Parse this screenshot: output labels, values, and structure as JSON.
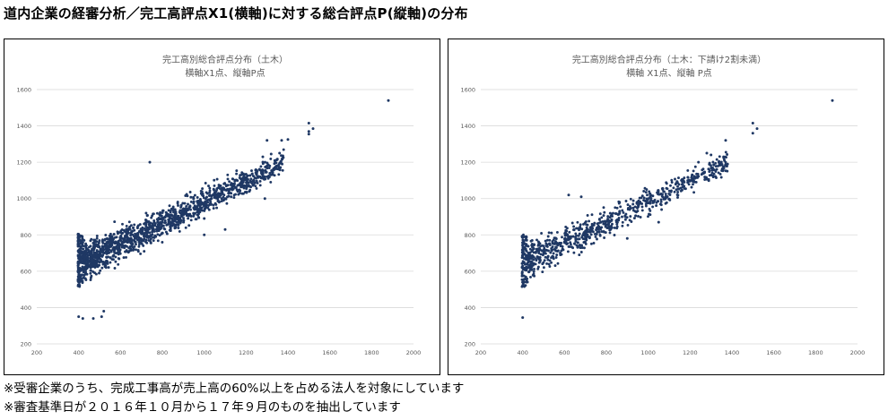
{
  "page": {
    "heading": "道内企業の経審分析／完工高評点X1(横軸)に対する総合評点P(縦軸)の分布",
    "footnotes": [
      "※受審企業のうち、完成工事高が売上高の60%以上を占める法人を対象にしています",
      "※審査基準日が２０１６年１０月から１７年９月のものを抽出しています"
    ]
  },
  "colors": {
    "marker": "#1f3864",
    "grid": "#d9d9d9",
    "axis_text": "#595959",
    "title_text": "#595959"
  },
  "chart_data": [
    {
      "type": "scatter",
      "title": "完工高別総合評点分布（土木）",
      "subtitle": "横軸X1点、縦軸P点",
      "xlabel": "",
      "ylabel": "",
      "xlim": [
        200,
        2000
      ],
      "ylim": [
        200,
        1600
      ],
      "xticks": [
        "200",
        "400",
        "600",
        "800",
        "1000",
        "1200",
        "1400",
        "1600",
        "1800",
        "2000"
      ],
      "yticks": [
        "200",
        "400",
        "600",
        "800",
        "1000",
        "1200",
        "1400",
        "1600"
      ],
      "grid": "horizontal",
      "legend": "none",
      "points_generated": {
        "count": 1500,
        "x_min": 397,
        "x_max": 1380,
        "slope": 0.57,
        "intercept": 410,
        "spread": 60,
        "density": "dense near low x"
      },
      "notable_points": [
        [
          1880,
          1540
        ],
        [
          1500,
          1415
        ],
        [
          1520,
          1385
        ],
        [
          1500,
          1370
        ],
        [
          1500,
          1355
        ],
        [
          1400,
          1325
        ],
        [
          1370,
          1320
        ],
        [
          1300,
          1320
        ],
        [
          1360,
          1250
        ],
        [
          1320,
          1245
        ],
        [
          1280,
          1230
        ],
        [
          1290,
          1000
        ],
        [
          1000,
          800
        ],
        [
          1100,
          830
        ],
        [
          420,
          340
        ],
        [
          400,
          350
        ],
        [
          470,
          340
        ],
        [
          520,
          380
        ],
        [
          510,
          350
        ],
        [
          740,
          1200
        ],
        [
          1000,
          890
        ]
      ]
    },
    {
      "type": "scatter",
      "title": "完工高別総合評点分布（土木：下請け2割未満）",
      "subtitle": "横軸 X1点、縦軸 P点",
      "xlabel": "",
      "ylabel": "",
      "xlim": [
        200,
        2000
      ],
      "ylim": [
        200,
        1600
      ],
      "xticks": [
        "200",
        "400",
        "600",
        "800",
        "1000",
        "1200",
        "1400",
        "1600",
        "1800",
        "2000"
      ],
      "yticks": [
        "200",
        "400",
        "600",
        "800",
        "1000",
        "1200",
        "1400",
        "1600"
      ],
      "grid": "horizontal",
      "legend": "none",
      "points_generated": {
        "count": 850,
        "x_min": 397,
        "x_max": 1380,
        "slope": 0.57,
        "intercept": 410,
        "spread": 55,
        "density": "dense near low x"
      },
      "notable_points": [
        [
          1880,
          1540
        ],
        [
          1500,
          1415
        ],
        [
          1520,
          1385
        ],
        [
          1500,
          1360
        ],
        [
          1370,
          1320
        ],
        [
          1300,
          1240
        ],
        [
          1240,
          1200
        ],
        [
          1360,
          1230
        ],
        [
          1280,
          1250
        ],
        [
          900,
          780
        ],
        [
          400,
          345
        ],
        [
          620,
          1020
        ],
        [
          680,
          1010
        ],
        [
          1050,
          870
        ]
      ]
    }
  ]
}
